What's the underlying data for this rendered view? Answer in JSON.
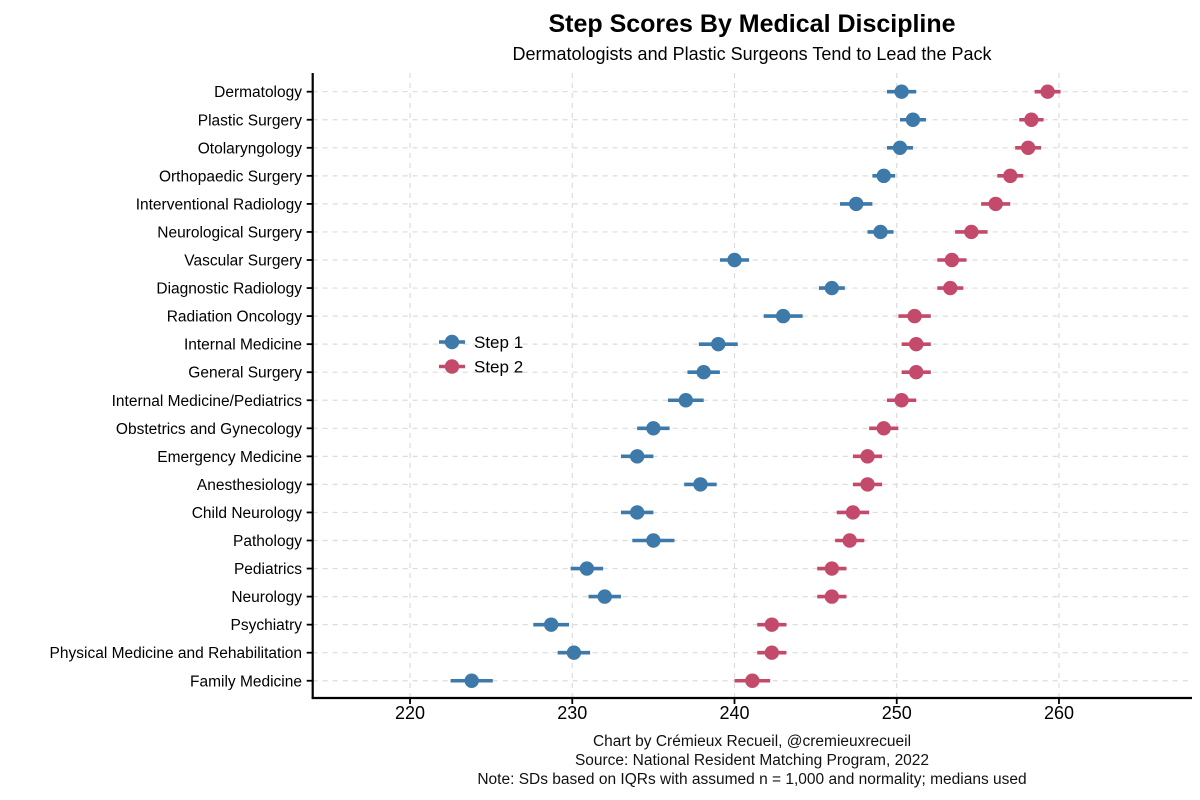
{
  "chart_data": {
    "type": "dot",
    "title": "Step Scores By Medical Discipline",
    "subtitle": "Dermatologists and Plastic Surgeons Tend to Lead the Pack",
    "categories": [
      "Dermatology",
      "Plastic Surgery",
      "Otolaryngology",
      "Orthopaedic Surgery",
      "Interventional Radiology",
      "Neurological Surgery",
      "Vascular Surgery",
      "Diagnostic Radiology",
      "Radiation Oncology",
      "Internal Medicine",
      "General Surgery",
      "Internal Medicine/Pediatrics",
      "Obstetrics and Gynecology",
      "Emergency Medicine",
      "Anesthesiology",
      "Child Neurology",
      "Pathology",
      "Pediatrics",
      "Neurology",
      "Psychiatry",
      "Physical Medicine and Rehabilitation",
      "Family Medicine"
    ],
    "series": [
      {
        "name": "Step 1",
        "color": "#3D79A9",
        "values": [
          250.3,
          251.0,
          250.2,
          249.2,
          247.5,
          249.0,
          240.0,
          246.0,
          243.0,
          239.0,
          238.1,
          237.0,
          235.0,
          234.0,
          237.9,
          234.0,
          235.0,
          230.9,
          232.0,
          228.7,
          230.1,
          223.8
        ],
        "ci_half_widths": [
          0.9,
          0.8,
          0.8,
          0.7,
          1.0,
          0.8,
          0.9,
          0.8,
          1.2,
          1.2,
          1.0,
          1.1,
          1.0,
          1.0,
          1.0,
          1.0,
          1.3,
          1.0,
          1.0,
          1.1,
          1.0,
          1.3
        ]
      },
      {
        "name": "Step 2",
        "color": "#C34A6B",
        "values": [
          259.3,
          258.3,
          258.1,
          257.0,
          256.1,
          254.6,
          253.4,
          253.3,
          251.1,
          251.2,
          251.2,
          250.3,
          249.2,
          248.2,
          248.2,
          247.3,
          247.1,
          246.0,
          246.0,
          242.3,
          242.3,
          241.1
        ],
        "ci_half_widths": [
          0.8,
          0.75,
          0.8,
          0.8,
          0.9,
          1.0,
          0.9,
          0.8,
          1.0,
          0.9,
          0.9,
          0.9,
          0.9,
          0.9,
          0.9,
          1.0,
          0.9,
          0.9,
          0.9,
          0.9,
          0.9,
          1.1
        ]
      }
    ],
    "x_ticks": [
      "220",
      "230",
      "240",
      "250",
      "260"
    ],
    "xlim": [
      214,
      268.2
    ],
    "grid": "dashed-lightgray-major-vertical-and-row-lines",
    "legend_position": "inside-middle-left",
    "footer_lines": [
      "Chart by Crémieux Recueil, @cremieuxrecueil",
      "Source: National Resident Matching Program, 2022",
      "Note: SDs based on IQRs with assumed n = 1,000 and normality; medians used"
    ]
  }
}
